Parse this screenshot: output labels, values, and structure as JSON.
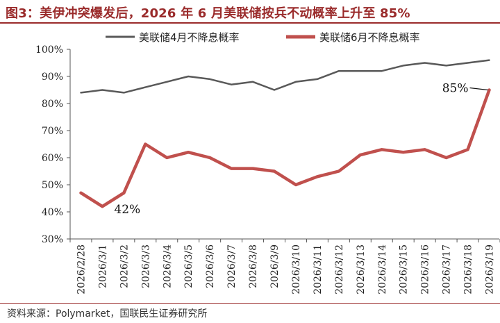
{
  "header": {
    "title": "图3：美伊冲突爆发后，2026 年 6 月美联储按兵不动概率上升至 85%"
  },
  "footer": {
    "source": "资料来源：Polymarket，国联民生证券研究所"
  },
  "colors": {
    "title": "#9a2b2b",
    "series_april": "#595959",
    "series_june": "#c0504d"
  },
  "chart_data": {
    "type": "line",
    "categories": [
      "2026/2/28",
      "2026/3/1",
      "2026/3/2",
      "2026/3/3",
      "2026/3/4",
      "2026/3/5",
      "2026/3/6",
      "2026/3/7",
      "2026/3/8",
      "2026/3/9",
      "2026/3/10",
      "2026/3/11",
      "2026/3/12",
      "2026/3/13",
      "2026/3/14",
      "2026/3/15",
      "2026/3/16",
      "2026/3/17",
      "2026/3/18",
      "2026/3/19"
    ],
    "series": [
      {
        "name": "美联储4月不降息概率",
        "color": "#595959",
        "values": [
          84,
          85,
          84,
          86,
          88,
          90,
          89,
          87,
          88,
          85,
          88,
          89,
          92,
          92,
          92,
          94,
          95,
          94,
          95,
          96
        ]
      },
      {
        "name": "美联储6月不降息概率",
        "color": "#c0504d",
        "values": [
          47,
          42,
          47,
          65,
          60,
          62,
          60,
          56,
          56,
          55,
          50,
          53,
          55,
          61,
          63,
          62,
          63,
          60,
          63,
          85
        ]
      }
    ],
    "yticks": [
      "30%",
      "40%",
      "50%",
      "60%",
      "70%",
      "80%",
      "90%",
      "100%"
    ],
    "ylim": [
      30,
      100
    ],
    "legend_position": "top",
    "annotations": [
      {
        "text": "42%",
        "series": 1,
        "index": 1
      },
      {
        "text": "85%",
        "series": 1,
        "index": 19
      }
    ]
  }
}
